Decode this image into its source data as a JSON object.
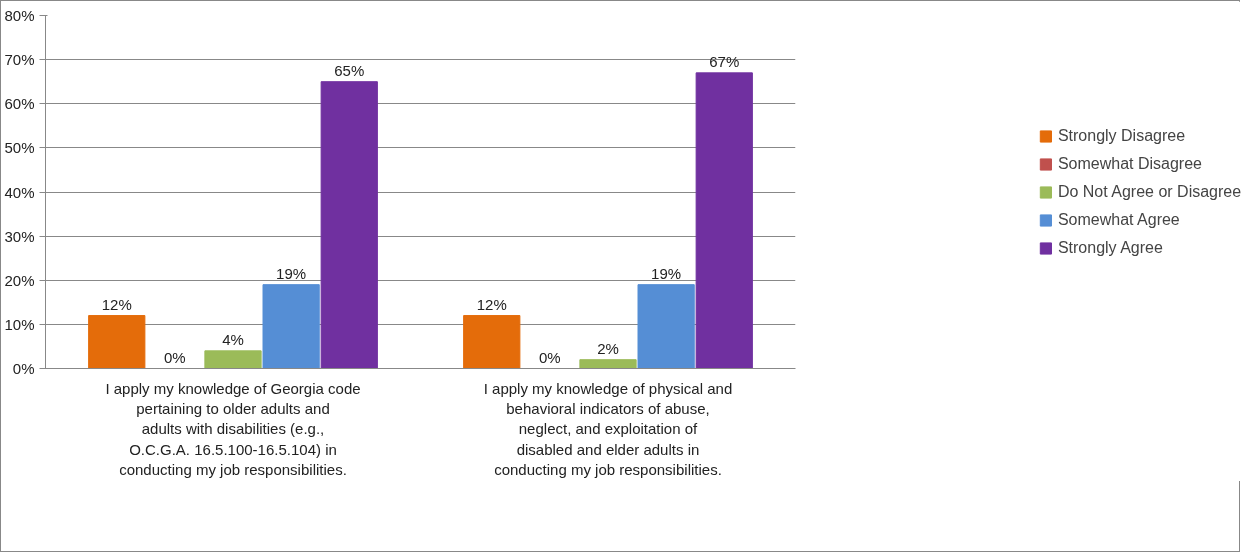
{
  "chart_data": {
    "type": "bar",
    "categories": [
      "I apply my knowledge of Georgia code pertaining to older adults and adults with disabilities (e.g., O.C.G.A. 16.5.100-16.5.104) in conducting my job responsibilities.",
      "I apply my knowledge of physical and behavioral indicators of abuse, neglect, and exploitation of disabled and elder adults in conducting my job responsibilities."
    ],
    "series": [
      {
        "name": "Strongly Disagree",
        "color": "#e46c0a",
        "values": [
          12,
          12
        ],
        "value_labels": [
          "12%",
          "12%"
        ]
      },
      {
        "name": "Somewhat Disagree",
        "color": "#c0504d",
        "values": [
          0,
          0
        ],
        "value_labels": [
          "0%",
          "0%"
        ]
      },
      {
        "name": "Do Not Agree or Disagree",
        "color": "#9bbb59",
        "values": [
          4,
          2
        ],
        "value_labels": [
          "4%",
          "2%"
        ]
      },
      {
        "name": "Somewhat Agree",
        "color": "#558ed5",
        "values": [
          19,
          19
        ],
        "value_labels": [
          "19%",
          "19%"
        ]
      },
      {
        "name": "Strongly Agree",
        "color": "#7030a0",
        "values": [
          65,
          67
        ],
        "value_labels": [
          "65%",
          "67%"
        ]
      }
    ],
    "ylim": [
      0,
      80
    ],
    "yticks": [
      {
        "value": 0,
        "label": "0%"
      },
      {
        "value": 10,
        "label": "10%"
      },
      {
        "value": 20,
        "label": "20%"
      },
      {
        "value": 30,
        "label": "30%"
      },
      {
        "value": 40,
        "label": "40%"
      },
      {
        "value": 50,
        "label": "50%"
      },
      {
        "value": 60,
        "label": "60%"
      },
      {
        "value": 70,
        "label": "70%"
      },
      {
        "value": 80,
        "label": "80%"
      }
    ],
    "grid": "y",
    "legend": "right"
  }
}
